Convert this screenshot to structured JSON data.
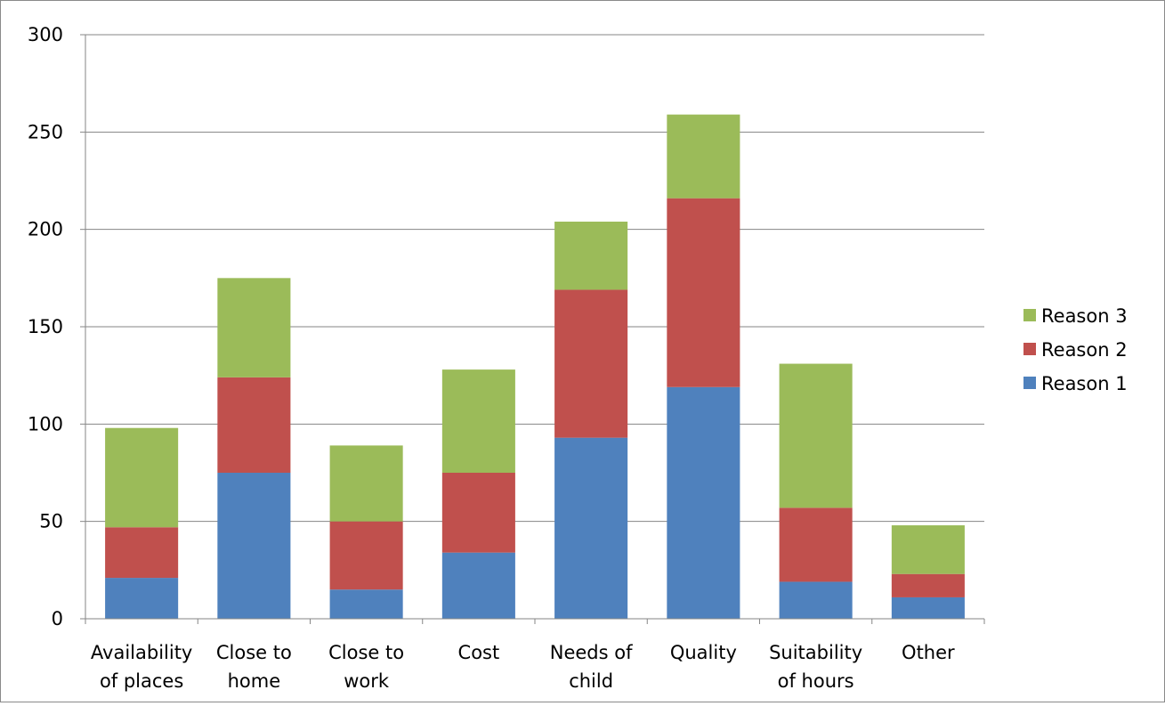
{
  "chart_data": {
    "type": "bar",
    "stacked": true,
    "categories": [
      [
        "Availability",
        "of places"
      ],
      [
        "Close to",
        "home"
      ],
      [
        "Close to",
        "work"
      ],
      [
        "Cost"
      ],
      [
        "Needs of",
        "child"
      ],
      [
        "Quality"
      ],
      [
        "Suitability",
        "of hours"
      ],
      [
        "Other"
      ]
    ],
    "series": [
      {
        "name": "Reason 1",
        "color": "#4F81BD",
        "values": [
          21,
          75,
          15,
          34,
          93,
          119,
          19,
          11
        ]
      },
      {
        "name": "Reason 2",
        "color": "#C0504D",
        "values": [
          26,
          49,
          35,
          41,
          76,
          97,
          38,
          12
        ]
      },
      {
        "name": "Reason 3",
        "color": "#9BBB59",
        "values": [
          51,
          51,
          39,
          53,
          35,
          43,
          74,
          25
        ]
      }
    ],
    "ylim": [
      0,
      300
    ],
    "yticks": [
      "0",
      "50",
      "100",
      "150",
      "200",
      "250",
      "300"
    ],
    "grid": true,
    "legend_position": "right",
    "legend_order": [
      "Reason 3",
      "Reason 2",
      "Reason 1"
    ]
  }
}
